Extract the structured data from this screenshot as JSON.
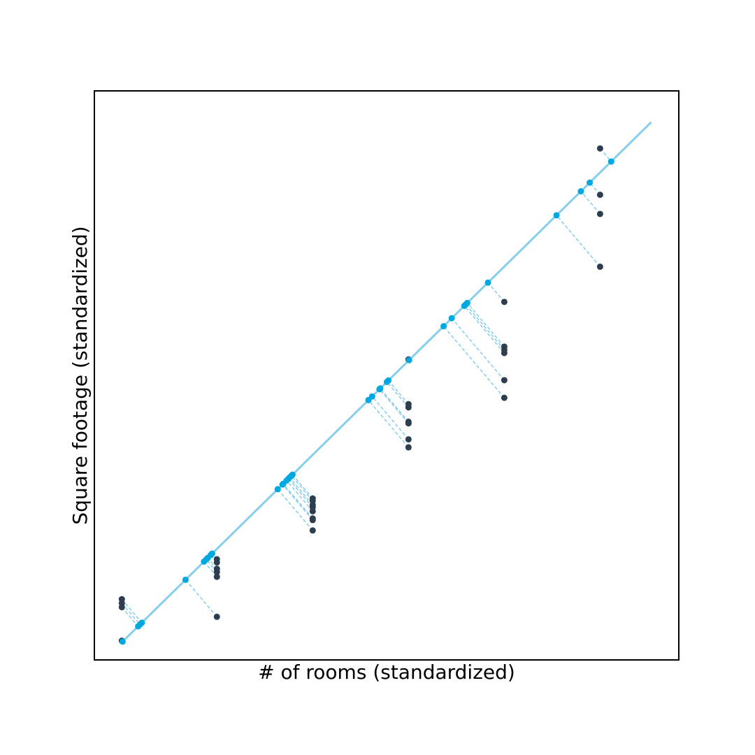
{
  "chart_data": {
    "type": "scatter",
    "title": "",
    "xlabel": "# of rooms (standardized)",
    "ylabel": "Square footage (standardized)",
    "xlim": [
      -1.875,
      2.06
    ],
    "ylim": [
      -1.5,
      2.06
    ],
    "show_ticks": false,
    "grid": false,
    "colors": {
      "points": "#2d3e50",
      "projections": "#00a8e0",
      "fit_line": "#87ceeb",
      "residuals": "#87ceeb",
      "frame": "#000000"
    },
    "fit_line": {
      "x": [
        -1.69,
        1.87
      ],
      "y": [
        -1.39,
        1.86
      ]
    },
    "points": [
      {
        "x": -1.69,
        "y": -1.38
      },
      {
        "x": -1.69,
        "y": -1.17
      },
      {
        "x": -1.69,
        "y": -1.145
      },
      {
        "x": -1.69,
        "y": -1.12
      },
      {
        "x": -1.05,
        "y": -1.23
      },
      {
        "x": -1.05,
        "y": -0.98
      },
      {
        "x": -1.05,
        "y": -0.95
      },
      {
        "x": -1.05,
        "y": -0.93
      },
      {
        "x": -1.05,
        "y": -0.89
      },
      {
        "x": -1.05,
        "y": -0.87
      },
      {
        "x": -0.405,
        "y": -0.69
      },
      {
        "x": -0.405,
        "y": -0.625
      },
      {
        "x": -0.405,
        "y": -0.615
      },
      {
        "x": -0.405,
        "y": -0.57
      },
      {
        "x": -0.405,
        "y": -0.545
      },
      {
        "x": -0.405,
        "y": -0.53
      },
      {
        "x": -0.405,
        "y": -0.505
      },
      {
        "x": -0.405,
        "y": -0.49
      },
      {
        "x": 0.24,
        "y": -0.17
      },
      {
        "x": 0.24,
        "y": -0.12
      },
      {
        "x": 0.24,
        "y": -0.02
      },
      {
        "x": 0.24,
        "y": -0.01
      },
      {
        "x": 0.24,
        "y": 0.08
      },
      {
        "x": 0.24,
        "y": 0.1
      },
      {
        "x": 0.24,
        "y": 0.38
      },
      {
        "x": 0.885,
        "y": 0.14
      },
      {
        "x": 0.885,
        "y": 0.25
      },
      {
        "x": 0.885,
        "y": 0.42
      },
      {
        "x": 0.885,
        "y": 0.44
      },
      {
        "x": 0.885,
        "y": 0.46
      },
      {
        "x": 0.885,
        "y": 0.74
      },
      {
        "x": 1.53,
        "y": 0.96
      },
      {
        "x": 1.53,
        "y": 1.29
      },
      {
        "x": 1.53,
        "y": 1.41
      },
      {
        "x": 1.53,
        "y": 1.7
      }
    ]
  }
}
